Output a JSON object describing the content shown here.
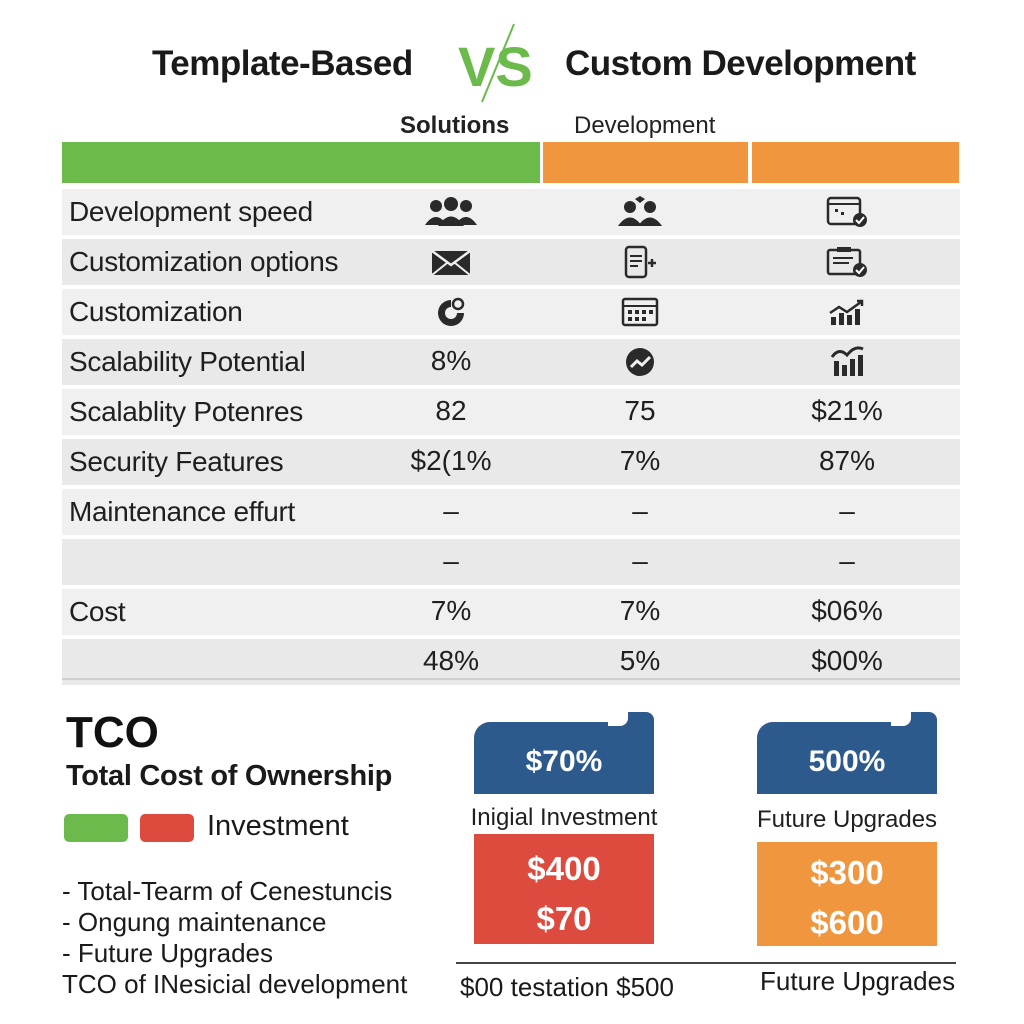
{
  "header": {
    "left_title": "Template-Based",
    "vs": "VS",
    "right_title": "Custom Development",
    "sub_left": "Solutions",
    "sub_right": "Development"
  },
  "colors": {
    "green": "#6cba4c",
    "orange": "#f0963e",
    "red": "#dd4b3f",
    "blue": "#2d5a8c"
  },
  "table": {
    "rows": [
      {
        "label": "Development speed",
        "c1": "",
        "c2": "",
        "c3": "",
        "icons": [
          "users-icon",
          "team-icon",
          "browser-shield-icon"
        ]
      },
      {
        "label": "Customization options",
        "c1": "",
        "c2": "",
        "c3": "",
        "icons": [
          "envelope-icon",
          "mobile-plus-icon",
          "document-shield-icon"
        ]
      },
      {
        "label": "Customization",
        "c1": "",
        "c2": "",
        "c3": "",
        "icons": [
          "pie-chart-icon",
          "calendar-grid-icon",
          "bar-chart-trend-icon"
        ]
      },
      {
        "label": "Scalability Potential",
        "c1": "8%",
        "c2": "",
        "c3": "",
        "icons": [
          "",
          "trend-circle-icon",
          "growth-bars-icon"
        ]
      },
      {
        "label": "Scalablity Potenres",
        "c1": "82",
        "c2": "75",
        "c3": "$21%"
      },
      {
        "label": "Security Features",
        "c1": "$2(1%",
        "c2": "7%",
        "c3": "87%"
      },
      {
        "label": "Maintenance effurt",
        "c1": "–",
        "c2": "–",
        "c3": "–"
      },
      {
        "label": "",
        "c1": "–",
        "c2": "–",
        "c3": "–"
      },
      {
        "label": "Cost",
        "c1": "7%",
        "c2": "7%",
        "c3": "$06%"
      },
      {
        "label": "",
        "c1": "48%",
        "c2": "5%",
        "c3": "$00%"
      }
    ]
  },
  "tco": {
    "title": "TCO",
    "subtitle": "Total Cost of Ownership",
    "legend_label": "Investment",
    "bullets": [
      "- Total-Tearm of Cenestuncis",
      "- Ongung maintenance",
      "- Future Upgrades",
      " TCO of INesicial development"
    ]
  },
  "cards": {
    "left": {
      "tab_value": "$70%",
      "label": "Inigial Investment",
      "value_1": "$400",
      "value_2": "$70"
    },
    "right": {
      "tab_value": "500%",
      "label": "Future Upgrades",
      "value_1": "$300",
      "value_2": "$600"
    },
    "footer_left": "$00 testation $500",
    "footer_right": "Future Upgrades"
  }
}
